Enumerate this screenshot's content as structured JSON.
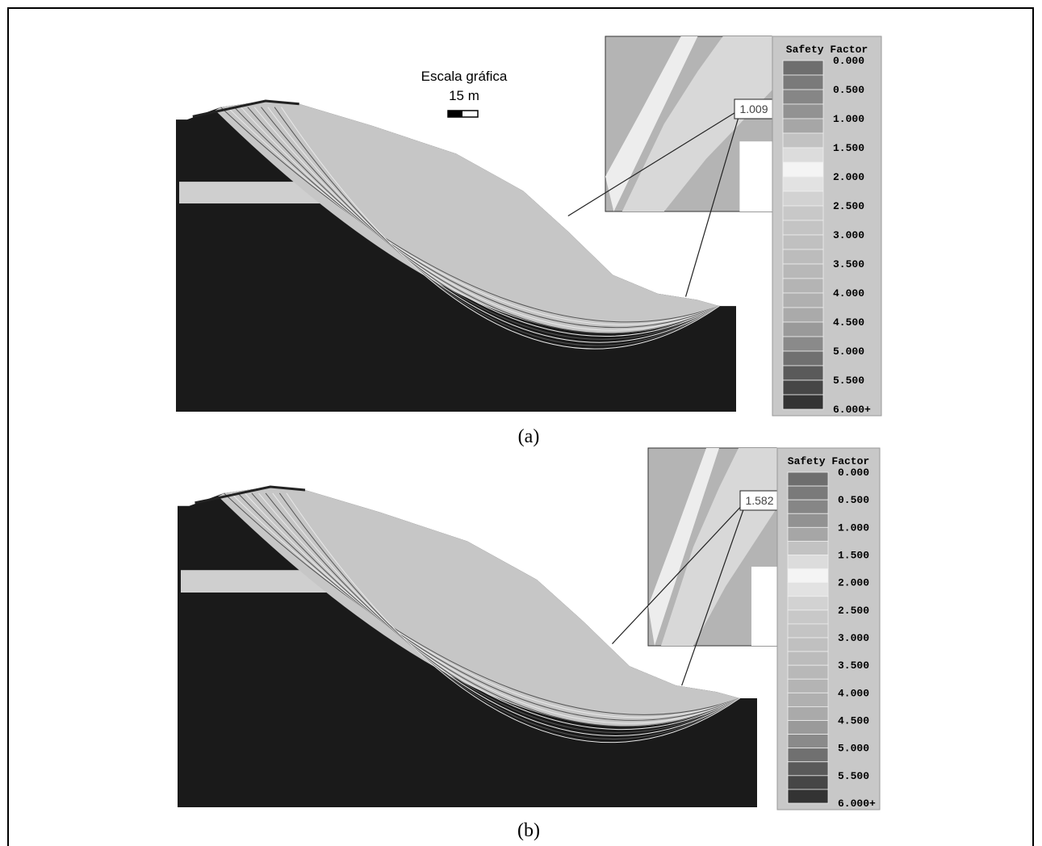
{
  "panels": [
    {
      "scale_title": "Escala gráfica",
      "scale_length": "15 m",
      "callout": "1.009",
      "legend": {
        "title": "Safety Factor",
        "labels": [
          "0.000",
          "0.500",
          "1.000",
          "1.500",
          "2.000",
          "2.500",
          "3.000",
          "3.500",
          "4.000",
          "4.500",
          "5.000",
          "5.500",
          "6.000+"
        ]
      },
      "caption": "(a)"
    },
    {
      "callout": "1.582",
      "legend": {
        "title": "Safety Factor",
        "labels": [
          "0.000",
          "0.500",
          "1.000",
          "1.500",
          "2.000",
          "2.500",
          "3.000",
          "3.500",
          "4.000",
          "4.500",
          "5.000",
          "5.500",
          "6.000+"
        ]
      },
      "caption": "(b)"
    }
  ]
}
